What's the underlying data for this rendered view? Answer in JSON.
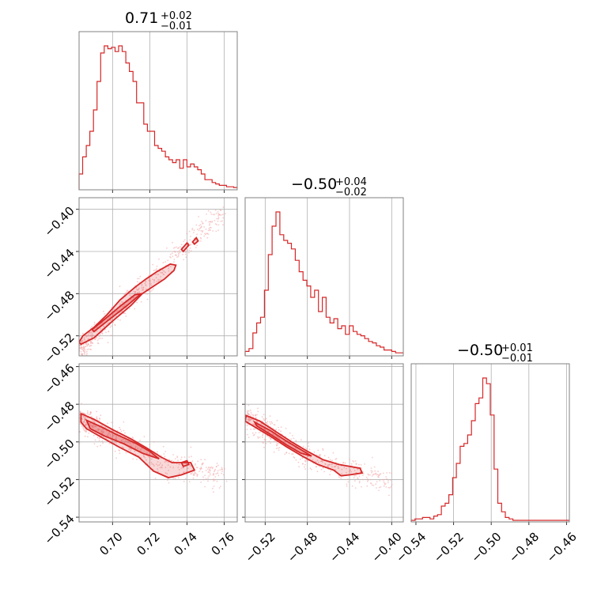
{
  "chart_data": {
    "type": "corner",
    "color": "#d62728",
    "parameters": [
      {
        "id": "p0",
        "title_value": "0.71",
        "title_upper": "+0.02",
        "title_lower": "−0.01",
        "range": [
          0.682,
          0.767
        ],
        "ticks": [
          0.7,
          0.72,
          0.74,
          0.76
        ],
        "tick_labels": [
          "0.70",
          "0.72",
          "0.74",
          "0.76"
        ],
        "hist_bins": [
          0.682,
          0.767
        ],
        "hist": [
          10,
          22,
          30,
          40,
          55,
          75,
          95,
          100,
          98,
          99,
          96,
          100,
          96,
          88,
          82,
          75,
          60,
          60,
          45,
          40,
          40,
          30,
          28,
          26,
          22,
          20,
          18,
          20,
          14,
          20,
          15,
          17,
          15,
          13,
          10,
          6,
          6,
          4,
          3,
          2,
          2,
          1,
          1,
          0.5
        ]
      },
      {
        "id": "p1",
        "title_value": "−0.50",
        "title_upper": "+0.04",
        "title_lower": "−0.02",
        "range": [
          -0.539,
          -0.389
        ],
        "ticks": [
          -0.52,
          -0.48,
          -0.44,
          -0.4
        ],
        "tick_labels": [
          "−0.52",
          "−0.48",
          "−0.44",
          "−0.40"
        ],
        "hist": [
          2,
          4,
          15,
          22,
          26,
          45,
          70,
          90,
          100,
          84,
          80,
          78,
          74,
          66,
          58,
          52,
          48,
          40,
          45,
          30,
          40,
          26,
          22,
          25,
          18,
          20,
          14,
          20,
          16,
          14,
          13,
          11,
          9,
          8,
          6,
          5,
          3,
          3,
          2,
          1,
          1
        ]
      },
      {
        "id": "p2",
        "title_value": "−0.50",
        "title_upper": "+0.01",
        "title_lower": "−0.01",
        "range": [
          -0.5425,
          -0.4585
        ],
        "ticks": [
          -0.54,
          -0.52,
          -0.5,
          -0.48,
          -0.46
        ],
        "tick_labels": [
          "−0.54",
          "−0.52",
          "−0.50",
          "−0.48",
          "−0.46"
        ],
        "hist": [
          0,
          1,
          1,
          2,
          2,
          1,
          3,
          4,
          10,
          12,
          18,
          30,
          40,
          52,
          54,
          60,
          70,
          82,
          86,
          100,
          96,
          74,
          36,
          12,
          6,
          2,
          1,
          0,
          0,
          0,
          0,
          0,
          0,
          0,
          0,
          0,
          0,
          0,
          0,
          0,
          0,
          0
        ]
      }
    ],
    "pairs": [
      {
        "x": "p0",
        "y": "p1",
        "ridge": [
          [
            0.683,
            -0.532
          ],
          [
            0.69,
            -0.52
          ],
          [
            0.7,
            -0.503
          ],
          [
            0.71,
            -0.486
          ],
          [
            0.72,
            -0.468
          ],
          [
            0.73,
            -0.452
          ],
          [
            0.74,
            -0.433
          ],
          [
            0.75,
            -0.417
          ],
          [
            0.76,
            -0.404
          ]
        ],
        "spread": 0.006,
        "contours": [
          {
            "level": "outer",
            "points": [
              [
                0.683,
                -0.528
              ],
              [
                0.69,
                -0.522
              ],
              [
                0.7,
                -0.506
              ],
              [
                0.71,
                -0.491
              ],
              [
                0.716,
                -0.48
              ],
              [
                0.722,
                -0.473
              ],
              [
                0.728,
                -0.466
              ],
              [
                0.733,
                -0.458
              ],
              [
                0.734,
                -0.453
              ],
              [
                0.731,
                -0.452
              ],
              [
                0.724,
                -0.459
              ],
              [
                0.718,
                -0.466
              ],
              [
                0.712,
                -0.474
              ],
              [
                0.704,
                -0.486
              ],
              [
                0.697,
                -0.5
              ],
              [
                0.69,
                -0.512
              ],
              [
                0.684,
                -0.52
              ],
              [
                0.682,
                -0.526
              ]
            ]
          },
          {
            "level": "inner",
            "points": [
              [
                0.69,
                -0.516
              ],
              [
                0.7,
                -0.502
              ],
              [
                0.708,
                -0.491
              ],
              [
                0.714,
                -0.482
              ],
              [
                0.716,
                -0.48
              ],
              [
                0.712,
                -0.481
              ],
              [
                0.704,
                -0.492
              ],
              [
                0.696,
                -0.504
              ],
              [
                0.689,
                -0.514
              ]
            ]
          },
          {
            "level": "island",
            "points": [
              [
                0.737,
                -0.438
              ],
              [
                0.74,
                -0.432
              ],
              [
                0.741,
                -0.434
              ],
              [
                0.738,
                -0.44
              ]
            ]
          },
          {
            "level": "island",
            "points": [
              [
                0.743,
                -0.431
              ],
              [
                0.745,
                -0.427
              ],
              [
                0.746,
                -0.43
              ],
              [
                0.744,
                -0.433
              ]
            ]
          }
        ]
      },
      {
        "x": "p0",
        "y": "p2",
        "ridge": [
          [
            0.683,
            -0.4875
          ],
          [
            0.69,
            -0.4925
          ],
          [
            0.7,
            -0.4975
          ],
          [
            0.71,
            -0.5025
          ],
          [
            0.72,
            -0.5075
          ],
          [
            0.73,
            -0.512
          ],
          [
            0.74,
            -0.514
          ],
          [
            0.75,
            -0.516
          ],
          [
            0.76,
            -0.517
          ]
        ],
        "spread": 0.0035,
        "contours": [
          {
            "level": "outer",
            "points": [
              [
                0.683,
                -0.485
              ],
              [
                0.69,
                -0.488
              ],
              [
                0.7,
                -0.4935
              ],
              [
                0.71,
                -0.4985
              ],
              [
                0.718,
                -0.503
              ],
              [
                0.726,
                -0.508
              ],
              [
                0.732,
                -0.511
              ],
              [
                0.742,
                -0.511
              ],
              [
                0.744,
                -0.515
              ],
              [
                0.737,
                -0.5175
              ],
              [
                0.73,
                -0.519
              ],
              [
                0.722,
                -0.5155
              ],
              [
                0.714,
                -0.508
              ],
              [
                0.704,
                -0.503
              ],
              [
                0.694,
                -0.4975
              ],
              [
                0.686,
                -0.493
              ],
              [
                0.683,
                -0.4895
              ]
            ]
          },
          {
            "level": "inner",
            "points": [
              [
                0.686,
                -0.4885
              ],
              [
                0.694,
                -0.492
              ],
              [
                0.702,
                -0.496
              ],
              [
                0.712,
                -0.5005
              ],
              [
                0.72,
                -0.505
              ],
              [
                0.725,
                -0.509
              ],
              [
                0.716,
                -0.506
              ],
              [
                0.706,
                -0.501
              ],
              [
                0.696,
                -0.497
              ],
              [
                0.688,
                -0.493
              ]
            ]
          },
          {
            "level": "island",
            "points": [
              [
                0.737,
                -0.511
              ],
              [
                0.74,
                -0.51
              ],
              [
                0.741,
                -0.512
              ],
              [
                0.738,
                -0.513
              ]
            ]
          }
        ]
      },
      {
        "x": "p1",
        "y": "p2",
        "ridge": [
          [
            -0.537,
            -0.4875
          ],
          [
            -0.52,
            -0.4935
          ],
          [
            -0.505,
            -0.499
          ],
          [
            -0.49,
            -0.5045
          ],
          [
            -0.475,
            -0.509
          ],
          [
            -0.46,
            -0.512
          ],
          [
            -0.445,
            -0.515
          ],
          [
            -0.43,
            -0.517
          ],
          [
            -0.415,
            -0.519
          ],
          [
            -0.4,
            -0.52
          ]
        ],
        "spread": 0.0035,
        "contours": [
          {
            "level": "outer",
            "points": [
              [
                -0.538,
                -0.486
              ],
              [
                -0.525,
                -0.489
              ],
              [
                -0.51,
                -0.4945
              ],
              [
                -0.495,
                -0.5
              ],
              [
                -0.48,
                -0.505
              ],
              [
                -0.465,
                -0.5095
              ],
              [
                -0.45,
                -0.512
              ],
              [
                -0.44,
                -0.513
              ],
              [
                -0.43,
                -0.514
              ],
              [
                -0.428,
                -0.5165
              ],
              [
                -0.44,
                -0.5175
              ],
              [
                -0.448,
                -0.518
              ],
              [
                -0.455,
                -0.515
              ],
              [
                -0.47,
                -0.512
              ],
              [
                -0.485,
                -0.5075
              ],
              [
                -0.5,
                -0.5025
              ],
              [
                -0.515,
                -0.497
              ],
              [
                -0.53,
                -0.492
              ],
              [
                -0.539,
                -0.489
              ]
            ]
          },
          {
            "level": "inner",
            "points": [
              [
                -0.53,
                -0.4895
              ],
              [
                -0.515,
                -0.494
              ],
              [
                -0.5,
                -0.4995
              ],
              [
                -0.488,
                -0.5035
              ],
              [
                -0.476,
                -0.5075
              ],
              [
                -0.486,
                -0.506
              ],
              [
                -0.5,
                -0.5015
              ],
              [
                -0.515,
                -0.496
              ],
              [
                -0.528,
                -0.4915
              ]
            ]
          }
        ]
      }
    ]
  }
}
